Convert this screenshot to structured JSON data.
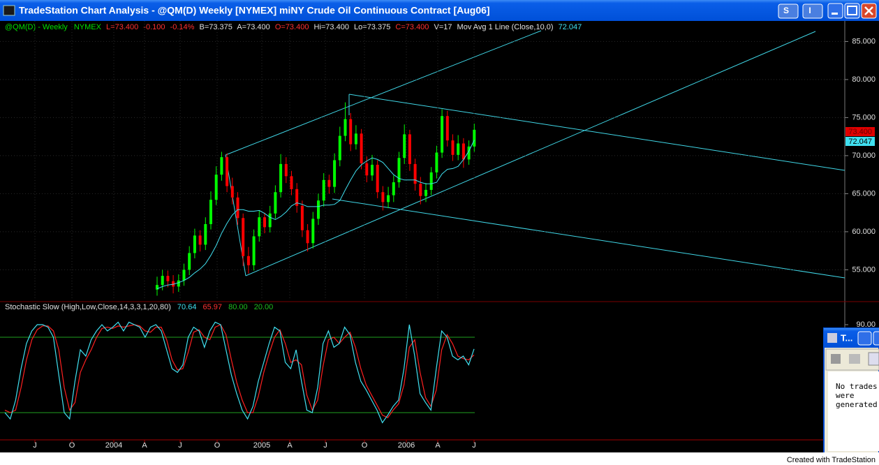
{
  "window": {
    "title": "TradeStation Chart Analysis - @QM(D)  Weekly  [NYMEX] miNY Crude Oil Continuous Contract [Aug06]",
    "buttons": [
      "S",
      "I"
    ]
  },
  "status": {
    "symbol": "@QM(D) - Weekly",
    "exchange": "NYMEX",
    "last": "L=73.400",
    "change": "-0.100",
    "pct": "-0.14%",
    "bid": "B=73.375",
    "ask": "A=73.400",
    "open": "O=73.400",
    "high": "Hi=73.400",
    "low": "Lo=73.375",
    "close": "C=73.400",
    "volume": "V=17",
    "study": "Mov Avg 1 Line  (Close,10,0)"
  },
  "price_badge": "73.400",
  "chart_data": [
    {
      "type": "candlestick",
      "up_color": "#00ff00",
      "down_color": "#ff0000",
      "grid": true,
      "open": [
        52.4,
        53.0,
        54.2,
        53.5,
        52.8,
        53.6,
        55.0,
        57.2,
        59.5,
        58.3,
        61.0,
        64.2,
        67.5,
        69.8,
        66.0,
        64.5,
        61.8,
        56.8,
        55.6,
        59.4,
        61.9,
        60.6,
        62.4,
        65.2,
        68.9,
        67.3,
        65.6,
        63.4,
        60.2,
        58.5,
        61.7,
        64.1,
        66.8,
        65.9,
        69.4,
        72.6,
        74.8,
        71.5,
        72.9,
        69.0,
        67.4,
        68.8,
        65.2,
        63.9,
        64.8,
        66.5,
        69.7,
        72.8,
        68.9,
        66.3,
        64.7,
        65.5,
        67.8,
        70.4,
        75.2,
        72.0,
        70.1,
        71.6,
        69.5,
        71.2
      ],
      "high": [
        54.1,
        55.0,
        54.9,
        54.3,
        54.4,
        55.8,
        58.1,
        60.4,
        60.2,
        61.9,
        65.3,
        68.6,
        70.5,
        70.3,
        67.1,
        65.2,
        62.4,
        58.0,
        60.3,
        62.8,
        62.5,
        63.4,
        66.1,
        70.2,
        69.8,
        68.0,
        66.4,
        64.1,
        61.0,
        62.6,
        65.0,
        67.7,
        67.5,
        70.3,
        73.8,
        77.0,
        75.6,
        74.0,
        73.5,
        69.9,
        70.1,
        69.4,
        66.0,
        65.9,
        67.4,
        70.5,
        74.1,
        73.4,
        69.6,
        67.2,
        66.4,
        68.5,
        71.3,
        76.1,
        75.9,
        72.8,
        72.7,
        72.3,
        72.0,
        74.2
      ],
      "low": [
        51.6,
        52.3,
        52.7,
        51.9,
        52.1,
        52.9,
        54.3,
        56.5,
        57.4,
        57.6,
        60.3,
        63.5,
        66.7,
        65.2,
        63.6,
        60.9,
        55.5,
        54.5,
        54.9,
        58.7,
        59.8,
        59.9,
        61.7,
        64.5,
        66.4,
        64.8,
        62.5,
        59.3,
        57.4,
        57.8,
        60.9,
        63.3,
        65.0,
        65.1,
        68.6,
        71.9,
        70.6,
        70.8,
        68.2,
        66.5,
        66.7,
        64.4,
        62.8,
        63.1,
        63.9,
        65.8,
        68.9,
        68.0,
        65.4,
        63.6,
        63.9,
        64.8,
        67.0,
        69.7,
        71.2,
        69.3,
        69.4,
        68.4,
        68.8,
        70.5
      ],
      "close": [
        53.0,
        54.2,
        53.5,
        52.8,
        53.6,
        55.0,
        57.2,
        59.5,
        58.3,
        61.0,
        64.2,
        67.5,
        69.8,
        66.0,
        64.5,
        61.8,
        56.8,
        55.6,
        59.4,
        61.9,
        60.6,
        62.4,
        65.2,
        68.9,
        67.3,
        65.6,
        63.4,
        60.2,
        58.5,
        61.7,
        64.1,
        66.8,
        65.9,
        69.4,
        72.6,
        74.8,
        71.5,
        72.9,
        69.0,
        67.4,
        68.8,
        65.2,
        63.9,
        64.8,
        66.5,
        69.7,
        72.8,
        68.9,
        66.3,
        64.7,
        65.5,
        67.8,
        70.4,
        75.2,
        72.0,
        70.1,
        71.6,
        69.5,
        71.2,
        73.4
      ],
      "series": [
        {
          "color": "#40e0f0",
          "values": [
            52.5,
            52.8,
            53.0,
            53.1,
            53.3,
            53.6,
            54.0,
            54.6,
            55.1,
            55.8,
            56.9,
            58.2,
            59.8,
            61.1,
            62.2,
            62.9,
            62.9,
            62.7,
            62.7,
            62.8,
            62.4,
            61.9,
            61.6,
            62.0,
            62.6,
            63.4,
            63.8,
            63.6,
            63.3,
            63.3,
            63.3,
            63.5,
            63.5,
            63.6,
            64.1,
            65.5,
            66.8,
            68.0,
            68.8,
            69.3,
            69.7,
            69.5,
            69.1,
            68.3,
            67.5,
            67.0,
            66.8,
            66.8,
            66.8,
            66.5,
            66.3,
            66.3,
            66.5,
            67.6,
            68.2,
            68.3,
            68.6,
            69.5,
            70.6,
            72.047
          ]
        }
      ],
      "ylim": [
        51.0,
        87.7
      ],
      "yticks": [
        {
          "value": 55,
          "label": "55.000"
        },
        {
          "value": 60,
          "label": "60.000"
        },
        {
          "value": 65,
          "label": "65.000"
        },
        {
          "value": 70,
          "label": "70.000"
        },
        {
          "value": 75,
          "label": "75.000"
        },
        {
          "value": 80,
          "label": "80.000"
        },
        {
          "value": 85,
          "label": "85.000"
        }
      ]
    },
    {
      "type": "line",
      "title": "Stochastic Slow  (High,Low,Close,14,3,3,1,20,80)",
      "series": [
        {
          "color": "#40e0f0",
          "values": [
            20,
            15,
            30,
            55,
            75,
            85,
            90,
            90,
            88,
            80,
            50,
            20,
            15,
            45,
            70,
            65,
            78,
            85,
            90,
            85,
            88,
            92,
            85,
            92,
            90,
            88,
            80,
            88,
            90,
            85,
            70,
            55,
            52,
            58,
            80,
            88,
            85,
            72,
            85,
            92,
            90,
            70,
            50,
            35,
            22,
            15,
            25,
            45,
            60,
            75,
            88,
            85,
            60,
            55,
            70,
            45,
            22,
            20,
            40,
            75,
            85,
            72,
            75,
            88,
            82,
            60,
            45,
            38,
            30,
            22,
            12,
            18,
            25,
            30,
            55,
            90,
            65,
            35,
            28,
            22,
            55,
            85,
            80,
            65,
            62,
            65,
            58,
            70.64
          ]
        },
        {
          "color": "#ff2020",
          "values": [
            22,
            20,
            22,
            40,
            62,
            78,
            86,
            89,
            89,
            85,
            70,
            40,
            22,
            28,
            52,
            62,
            70,
            80,
            87,
            88,
            87,
            89,
            88,
            89,
            90,
            89,
            85,
            84,
            88,
            88,
            78,
            62,
            54,
            55,
            68,
            84,
            86,
            80,
            78,
            88,
            90,
            82,
            62,
            44,
            30,
            20,
            20,
            33,
            52,
            67,
            80,
            86,
            75,
            60,
            62,
            58,
            34,
            22,
            30,
            57,
            78,
            80,
            75,
            80,
            84,
            72,
            55,
            42,
            34,
            26,
            18,
            16,
            22,
            27,
            42,
            72,
            78,
            52,
            32,
            25,
            38,
            70,
            82,
            75,
            65,
            63,
            62,
            65.97
          ]
        }
      ],
      "levels": [
        {
          "value": 80,
          "label": "80.00"
        },
        {
          "value": 20,
          "label": "20.00"
        }
      ],
      "level_color": "#1f9f1f",
      "ylim": [
        0,
        100
      ],
      "yticks": [
        {
          "value": 90,
          "label": "90.00"
        }
      ],
      "x_labels": [
        "J",
        "O",
        "2004",
        "A",
        "J",
        "O",
        "2005",
        "A",
        "J",
        "O",
        "2006",
        "A",
        "J"
      ]
    }
  ],
  "trades_window": {
    "title": "T...",
    "message": [
      "No trades",
      "were",
      "generated."
    ]
  },
  "footer": "Created with TradeStation"
}
